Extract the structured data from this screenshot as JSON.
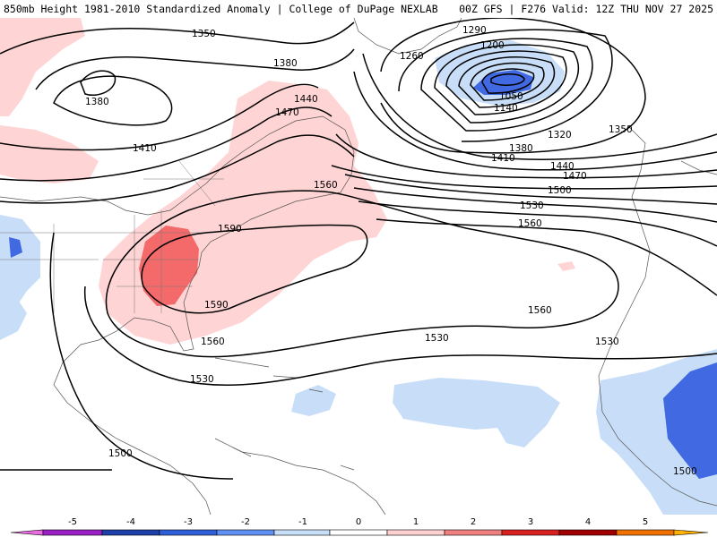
{
  "header": {
    "left_title": "850mb Height 1981-2010 Standardized Anomaly | College of DuPage NEXLAB",
    "right_title": "00Z GFS | F276 Valid: 12Z THU NOV 27 2025"
  },
  "contour_labels": [
    "1350",
    "1290",
    "1200",
    "1260",
    "1380",
    "1050",
    "1140",
    "1380",
    "1320",
    "1350",
    "1440",
    "1470",
    "1410",
    "1380",
    "1410",
    "1440",
    "1470",
    "1500",
    "1560",
    "1530",
    "1590",
    "1560",
    "1590",
    "1560",
    "1560",
    "1530",
    "1530",
    "1530",
    "1500",
    "1500"
  ],
  "colorbar": {
    "ticks": [
      "-5",
      "-4",
      "-3",
      "-2",
      "-1",
      "0",
      "1",
      "2",
      "3",
      "4",
      "5"
    ],
    "colors": [
      "#e86be0",
      "#9a1fc4",
      "#1c3fa8",
      "#2f5fd8",
      "#5f8ff0",
      "#c8dff8",
      "#ffffff",
      "#ffd0d0",
      "#f08080",
      "#d82020",
      "#a00000",
      "#f07000",
      "#ffb000"
    ]
  },
  "anomaly_colors": {
    "pos1": "#ffd4d4",
    "pos2": "#f46a6a",
    "neg1": "#c8def8",
    "neg2": "#4169e1"
  }
}
